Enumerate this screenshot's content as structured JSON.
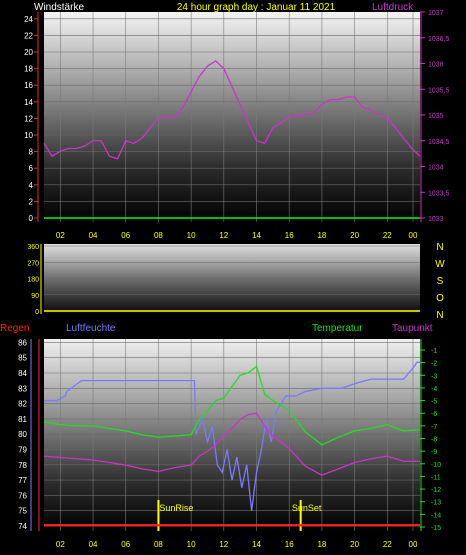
{
  "header": {
    "left_label": "Windstärke",
    "title": "24 hour graph day : Januar 11 2021",
    "right_label": "Luftdruck"
  },
  "mid_header": {
    "left_label": "Regen",
    "humidity_label": "Luftfeuchte",
    "temperature_label": "Temperatur",
    "dewpoint_label": "Taupunkt"
  },
  "colors": {
    "wind": "#00ff00",
    "pressure": "#cc33cc",
    "rain": "#ff2222",
    "humidity": "#7a7aff",
    "temperature": "#22dd22",
    "dewpoint": "#cc33cc",
    "title": "#ffff00",
    "axis_left": "#ffffff",
    "axis_bottom": "#ffff00"
  },
  "x_tick_labels": [
    "02",
    "04",
    "06",
    "08",
    "10",
    "12",
    "14",
    "16",
    "18",
    "20",
    "22",
    "00"
  ],
  "compass_labels": [
    "N",
    "W",
    "S",
    "O",
    "N"
  ],
  "sun_labels": {
    "sunrise": "SunRise",
    "sunset": "SunSet"
  },
  "chart_data": [
    {
      "type": "line",
      "panel": "top",
      "y_left_ticks": [
        "0",
        "2",
        "4",
        "6",
        "8",
        "10",
        "12",
        "14",
        "16",
        "18",
        "20",
        "22",
        "24"
      ],
      "y_left_range": [
        0,
        25
      ],
      "y_right_ticks": [
        "1033",
        "1033,5",
        "1034",
        "1034,5",
        "1035",
        "1035,5",
        "1036",
        "1036,5",
        "1037"
      ],
      "y_right_range": [
        1033,
        1037
      ],
      "x_range_hours": [
        1,
        24
      ],
      "series": [
        {
          "name": "Windstärke",
          "axis": "left",
          "x": [
            1,
            24
          ],
          "values": [
            0,
            0
          ]
        },
        {
          "name": "Luftdruck",
          "axis": "right",
          "x": [
            1,
            1.5,
            2,
            2.5,
            3,
            3.5,
            4,
            4.5,
            5,
            5.5,
            6,
            6.5,
            7,
            7.5,
            8,
            8.5,
            9,
            9.5,
            10,
            10.5,
            11,
            11.5,
            12,
            12.5,
            13,
            13.5,
            14,
            14.5,
            15,
            15.5,
            16,
            16.5,
            17,
            17.5,
            18,
            18.5,
            19,
            19.5,
            20,
            20.5,
            21,
            21.5,
            22,
            22.5,
            23,
            23.5,
            24
          ],
          "values": [
            1034.45,
            1034.2,
            1034.3,
            1034.35,
            1034.35,
            1034.4,
            1034.5,
            1034.5,
            1034.2,
            1034.15,
            1034.5,
            1034.45,
            1034.55,
            1034.75,
            1034.95,
            1034.95,
            1034.95,
            1035.15,
            1035.45,
            1035.75,
            1035.95,
            1036.05,
            1035.9,
            1035.55,
            1035.2,
            1034.85,
            1034.5,
            1034.45,
            1034.75,
            1034.85,
            1034.95,
            1035.0,
            1035.0,
            1035.05,
            1035.2,
            1035.3,
            1035.3,
            1035.35,
            1035.35,
            1035.15,
            1035.1,
            1035.0,
            1034.95,
            1034.75,
            1034.55,
            1034.35,
            1034.2
          ]
        }
      ]
    },
    {
      "type": "line",
      "panel": "wind_direction",
      "y_ticks": [
        "0",
        "90",
        "180",
        "270",
        "360"
      ],
      "y_range": [
        0,
        360
      ],
      "x_range_hours": [
        1,
        24
      ],
      "series": [
        {
          "name": "",
          "x": [
            1,
            24
          ],
          "values": [
            0,
            0
          ]
        }
      ]
    },
    {
      "type": "line",
      "panel": "bottom",
      "y_left_ticks": [
        "74",
        "75",
        "76",
        "77",
        "78",
        "79",
        "80",
        "81",
        "82",
        "83",
        "84",
        "85",
        "86"
      ],
      "y_left_range": [
        74,
        86
      ],
      "y_right_ticks": [
        "-1",
        "-2",
        "-3",
        "-4",
        "-5",
        "-6",
        "-7",
        "-8",
        "-9",
        "-10",
        "-11",
        "-12",
        "-13",
        "-14",
        "-15"
      ],
      "y_right_range": [
        -15,
        -1
      ],
      "x_range_hours": [
        1,
        24
      ],
      "series": [
        {
          "name": "Regen",
          "axis": "left",
          "x": [
            1,
            24
          ],
          "values": [
            74.05,
            74.05
          ]
        },
        {
          "name": "Luftfeuchte",
          "axis": "left",
          "x": [
            1,
            1.8,
            2.3,
            2.4,
            3.3,
            10.2,
            10.3,
            10.7,
            11.0,
            11.3,
            11.6,
            11.9,
            12.2,
            12.5,
            12.8,
            13.1,
            13.4,
            13.7,
            14.0,
            14.3,
            14.6,
            14.9,
            15.2,
            15.5,
            15.8,
            16.4,
            17.0,
            18.0,
            19.2,
            20.0,
            21.0,
            22.0,
            23.0,
            23.7,
            23.8,
            24
          ],
          "values": [
            82.2,
            82.2,
            82.5,
            82.8,
            83.5,
            83.5,
            80.0,
            81.0,
            79.5,
            80.5,
            78.0,
            77.5,
            79.0,
            77.0,
            78.5,
            76.5,
            78.0,
            75.0,
            77.5,
            79.0,
            81.0,
            79.5,
            81.5,
            82.0,
            82.5,
            82.5,
            82.8,
            83.0,
            83.0,
            83.3,
            83.6,
            83.6,
            83.6,
            84.5,
            84.7,
            84.7
          ]
        },
        {
          "name": "Temperatur",
          "axis": "right",
          "x": [
            1,
            2,
            3,
            4,
            5,
            6,
            7,
            8,
            9,
            10,
            10.5,
            11,
            11.5,
            12,
            12.5,
            13,
            13.5,
            14,
            14.5,
            15,
            16,
            17,
            18,
            19,
            20,
            21,
            22,
            23,
            24
          ],
          "values": [
            -6.7,
            -6.9,
            -7.0,
            -7.0,
            -7.2,
            -7.4,
            -7.7,
            -7.9,
            -7.8,
            -7.7,
            -6.5,
            -5.8,
            -5.0,
            -4.8,
            -3.9,
            -3.0,
            -2.8,
            -2.3,
            -4.5,
            -5.0,
            -5.8,
            -7.5,
            -8.5,
            -7.9,
            -7.4,
            -7.2,
            -6.9,
            -7.4,
            -7.3
          ]
        },
        {
          "name": "Taupunkt",
          "axis": "right",
          "x": [
            1,
            2,
            3,
            4,
            5,
            6,
            7,
            8,
            9,
            10,
            10.5,
            11,
            11.5,
            12,
            12.5,
            13,
            13.5,
            14,
            14.5,
            15,
            16,
            17,
            18,
            19,
            20,
            21,
            22,
            23,
            24
          ],
          "values": [
            -9.4,
            -9.5,
            -9.6,
            -9.7,
            -9.9,
            -10.1,
            -10.4,
            -10.6,
            -10.3,
            -10.1,
            -9.4,
            -9.0,
            -8.5,
            -7.8,
            -7.2,
            -6.5,
            -6.1,
            -6.0,
            -7.0,
            -7.8,
            -8.8,
            -10.2,
            -10.9,
            -10.4,
            -9.9,
            -9.6,
            -9.4,
            -9.8,
            -9.8
          ]
        }
      ],
      "markers": {
        "sunrise_hour": 8.0,
        "sunset_hour": 16.7
      }
    }
  ]
}
